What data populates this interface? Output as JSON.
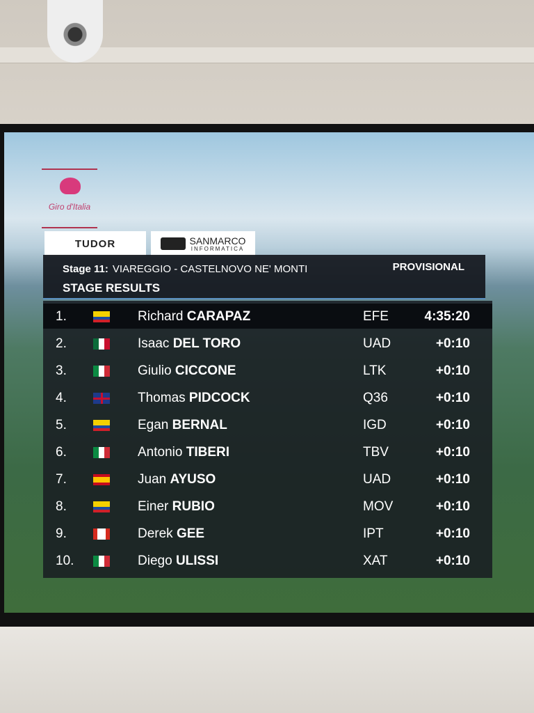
{
  "logo": "Giro d'Italia",
  "sponsors": {
    "tudor": "TUDOR",
    "sanmarco": "SANMARCO",
    "sanmarco_tagline": "INFORMATICA"
  },
  "header": {
    "stage": "Stage 11:",
    "route": "VIAREGGIO - CASTELNOVO NE' MONTI",
    "status": "PROVISIONAL",
    "title": "STAGE RESULTS"
  },
  "results": [
    {
      "rank": "1.",
      "first_name": "Richard",
      "last_name": "CARAPAZ",
      "team": "EFE",
      "time": "4:35:20"
    },
    {
      "rank": "2.",
      "first_name": "Isaac",
      "last_name": "DEL TORO",
      "team": "UAD",
      "time": "+0:10"
    },
    {
      "rank": "3.",
      "first_name": "Giulio",
      "last_name": "CICCONE",
      "team": "LTK",
      "time": "+0:10"
    },
    {
      "rank": "4.",
      "first_name": "Thomas",
      "last_name": "PIDCOCK",
      "team": "Q36",
      "time": "+0:10"
    },
    {
      "rank": "5.",
      "first_name": "Egan",
      "last_name": "BERNAL",
      "team": "IGD",
      "time": "+0:10"
    },
    {
      "rank": "6.",
      "first_name": "Antonio",
      "last_name": "TIBERI",
      "team": "TBV",
      "time": "+0:10"
    },
    {
      "rank": "7.",
      "first_name": "Juan",
      "last_name": "AYUSO",
      "team": "UAD",
      "time": "+0:10"
    },
    {
      "rank": "8.",
      "first_name": "Einer",
      "last_name": "RUBIO",
      "team": "MOV",
      "time": "+0:10"
    },
    {
      "rank": "9.",
      "first_name": "Derek",
      "last_name": "GEE",
      "team": "IPT",
      "time": "+0:10"
    },
    {
      "rank": "10.",
      "first_name": "Diego",
      "last_name": "ULISSI",
      "team": "XAT",
      "time": "+0:10"
    }
  ]
}
